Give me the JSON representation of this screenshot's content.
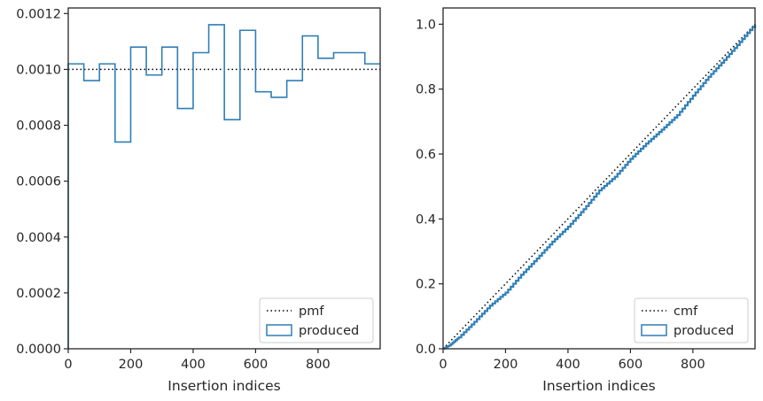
{
  "chart_data": [
    {
      "type": "step",
      "xlabel": "Insertion indices",
      "ylabel": "",
      "xlim": [
        0,
        999
      ],
      "ylim": [
        0,
        0.00122
      ],
      "xticks": [
        0,
        200,
        400,
        600,
        800
      ],
      "xtick_labels": [
        "0",
        "200",
        "400",
        "600",
        "800"
      ],
      "yticks": [
        0,
        0.0002,
        0.0004,
        0.0006,
        0.0008,
        0.001,
        0.0012
      ],
      "ytick_labels": [
        "0.0000",
        "0.0002",
        "0.0004",
        "0.0006",
        "0.0008",
        "0.0010",
        "0.0012"
      ],
      "legend_position": "lower-right",
      "series": [
        {
          "name": "pmf",
          "style": "dotted",
          "color": "#000000",
          "x": [
            0,
            999
          ],
          "y": [
            0.001,
            0.001
          ]
        },
        {
          "name": "produced",
          "style": "step-histogram",
          "color": "#2f7fb5",
          "bin_edges": [
            0,
            50,
            100,
            150,
            200,
            250,
            300,
            350,
            400,
            450,
            500,
            550,
            600,
            650,
            700,
            750,
            800,
            850,
            900,
            950,
            999
          ],
          "values": [
            0.00102,
            0.00096,
            0.00102,
            0.00074,
            0.00108,
            0.00098,
            0.00108,
            0.00086,
            0.00106,
            0.00116,
            0.00082,
            0.00114,
            0.00092,
            0.0009,
            0.00096,
            0.00112,
            0.00104,
            0.00106,
            0.00106,
            0.00102
          ]
        }
      ]
    },
    {
      "type": "line",
      "xlabel": "Insertion indices",
      "ylabel": "",
      "xlim": [
        0,
        999
      ],
      "ylim": [
        0,
        1.05
      ],
      "xticks": [
        0,
        200,
        400,
        600,
        800
      ],
      "xtick_labels": [
        "0",
        "200",
        "400",
        "600",
        "800"
      ],
      "yticks": [
        0,
        0.2,
        0.4,
        0.6,
        0.8,
        1.0
      ],
      "ytick_labels": [
        "0.0",
        "0.2",
        "0.4",
        "0.6",
        "0.8",
        "1.0"
      ],
      "legend_position": "lower-right",
      "series": [
        {
          "name": "cmf",
          "style": "dotted",
          "color": "#000000",
          "x": [
            0,
            999
          ],
          "y": [
            0,
            1.0
          ]
        },
        {
          "name": "produced",
          "style": "step-line",
          "color": "#2f7fb5",
          "x": [
            0,
            20,
            50,
            100,
            150,
            200,
            250,
            300,
            350,
            400,
            450,
            500,
            550,
            600,
            650,
            700,
            750,
            800,
            850,
            900,
            950,
            999
          ],
          "y": [
            0,
            0.01,
            0.035,
            0.083,
            0.133,
            0.173,
            0.228,
            0.278,
            0.33,
            0.376,
            0.43,
            0.488,
            0.53,
            0.585,
            0.632,
            0.675,
            0.72,
            0.78,
            0.838,
            0.89,
            0.945,
            1.0
          ]
        }
      ]
    }
  ]
}
